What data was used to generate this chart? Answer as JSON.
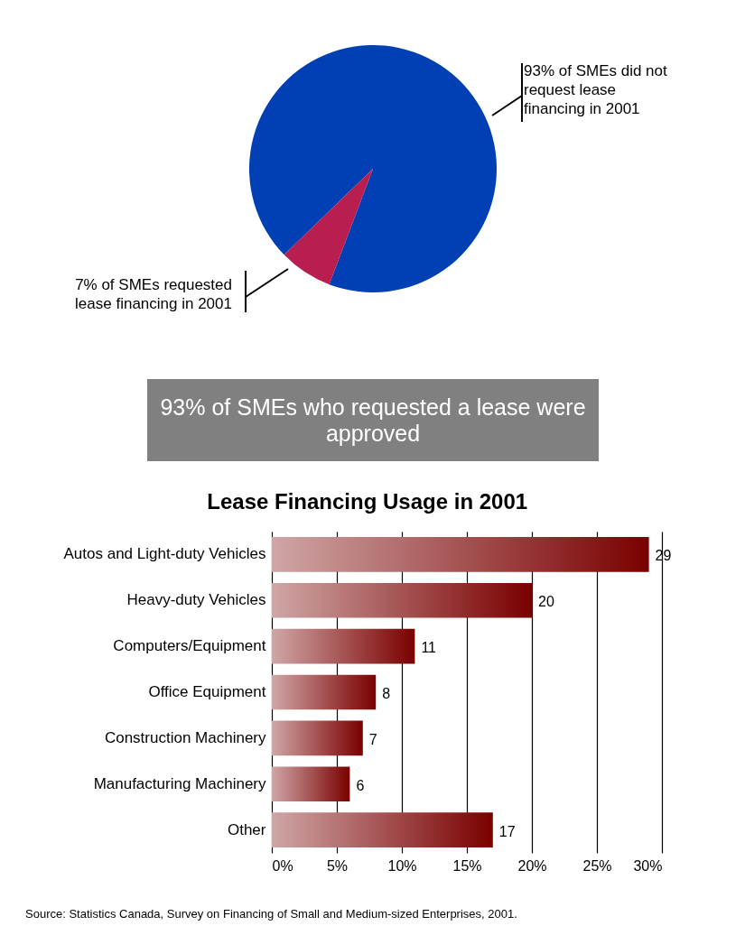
{
  "chart_data": [
    {
      "type": "pie",
      "categories": [
        "93% of SMEs did not request lease financing in 2001",
        "7% of SMEs requested lease financing in 2001"
      ],
      "values": [
        93,
        7
      ],
      "colors": [
        "#0040b4",
        "#b81e50"
      ]
    },
    {
      "type": "other",
      "title": "93% of SMEs who requested a lease were approved"
    },
    {
      "type": "bar",
      "orientation": "horizontal",
      "title": "Lease Financing Usage in 2001",
      "categories": [
        "Autos and Light-duty Vehicles",
        "Heavy-duty Vehicles",
        "Computers/Equipment",
        "Office Equipment",
        "Construction Machinery",
        "Manufacturing Machinery",
        "Other"
      ],
      "values": [
        29,
        20,
        11,
        8,
        7,
        6,
        17
      ],
      "color": "#7a0000",
      "data_labels": true,
      "xlim": [
        0,
        30
      ],
      "xticks": [
        {
          "value": 0,
          "label": "0%"
        },
        {
          "value": 5,
          "label": "5%"
        },
        {
          "value": 10,
          "label": "10%"
        },
        {
          "value": 15,
          "label": "15%"
        },
        {
          "value": 20,
          "label": "20%"
        },
        {
          "value": 25,
          "label": "25%"
        },
        {
          "value": 30,
          "label": "30%"
        }
      ],
      "grid": "x",
      "annotations": [
        "Source: Statistics Canada, Survey on Financing of Small and Medium-sized Enterprises, 2001."
      ]
    }
  ]
}
